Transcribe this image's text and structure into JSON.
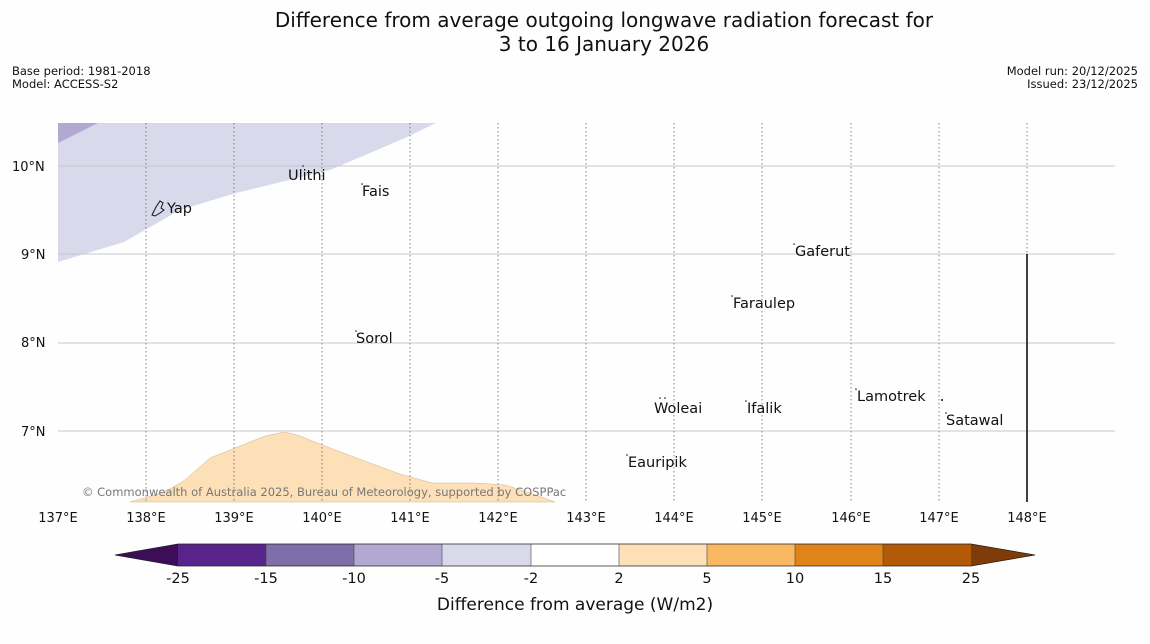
{
  "title": {
    "line1": "Difference from average outgoing longwave radiation forecast for",
    "line2": "3 to 16 January 2026"
  },
  "meta": {
    "base_period": "Base period: 1981-2018",
    "model": "Model: ACCESS-S2",
    "model_run": "Model run: 20/12/2025",
    "issued": "Issued: 23/12/2025"
  },
  "map": {
    "lon_ticks": [
      "137°E",
      "138°E",
      "139°E",
      "140°E",
      "141°E",
      "142°E",
      "143°E",
      "144°E",
      "145°E",
      "146°E",
      "147°E",
      "148°E"
    ],
    "lat_ticks": [
      "10°N",
      "9°N",
      "8°N",
      "7°N"
    ],
    "places": [
      {
        "name": "Ulithi"
      },
      {
        "name": "Fais"
      },
      {
        "name": "Yap"
      },
      {
        "name": "Gaferut"
      },
      {
        "name": "Faraulep"
      },
      {
        "name": "Sorol"
      },
      {
        "name": "Lamotrek"
      },
      {
        "name": "Woleai"
      },
      {
        "name": "Ifalik"
      },
      {
        "name": "Satawal"
      },
      {
        "name": "Eauripik"
      }
    ],
    "copyright": "© Commonwealth of Australia 2025, Bureau of Meteorology, supported by COSPPac"
  },
  "colorbar": {
    "title": "Difference from average (W/m2)",
    "ticks": [
      "-25",
      "-15",
      "-10",
      "-5",
      "-2",
      "2",
      "5",
      "10",
      "15",
      "25"
    ],
    "colors": {
      "lt-25": "#3d0d57",
      "-25to-15": "#58238b",
      "-15to-10": "#7f6ea9",
      "-10to-5": "#b2a9d2",
      "-5to-2": "#d9d9ec",
      "-2to2": "#ffffff",
      "2to5": "#fde0b7",
      "5to10": "#fbb862",
      "10to15": "#e08318",
      "15to25": "#b35a08",
      "gt25": "#7f3b08"
    }
  }
}
